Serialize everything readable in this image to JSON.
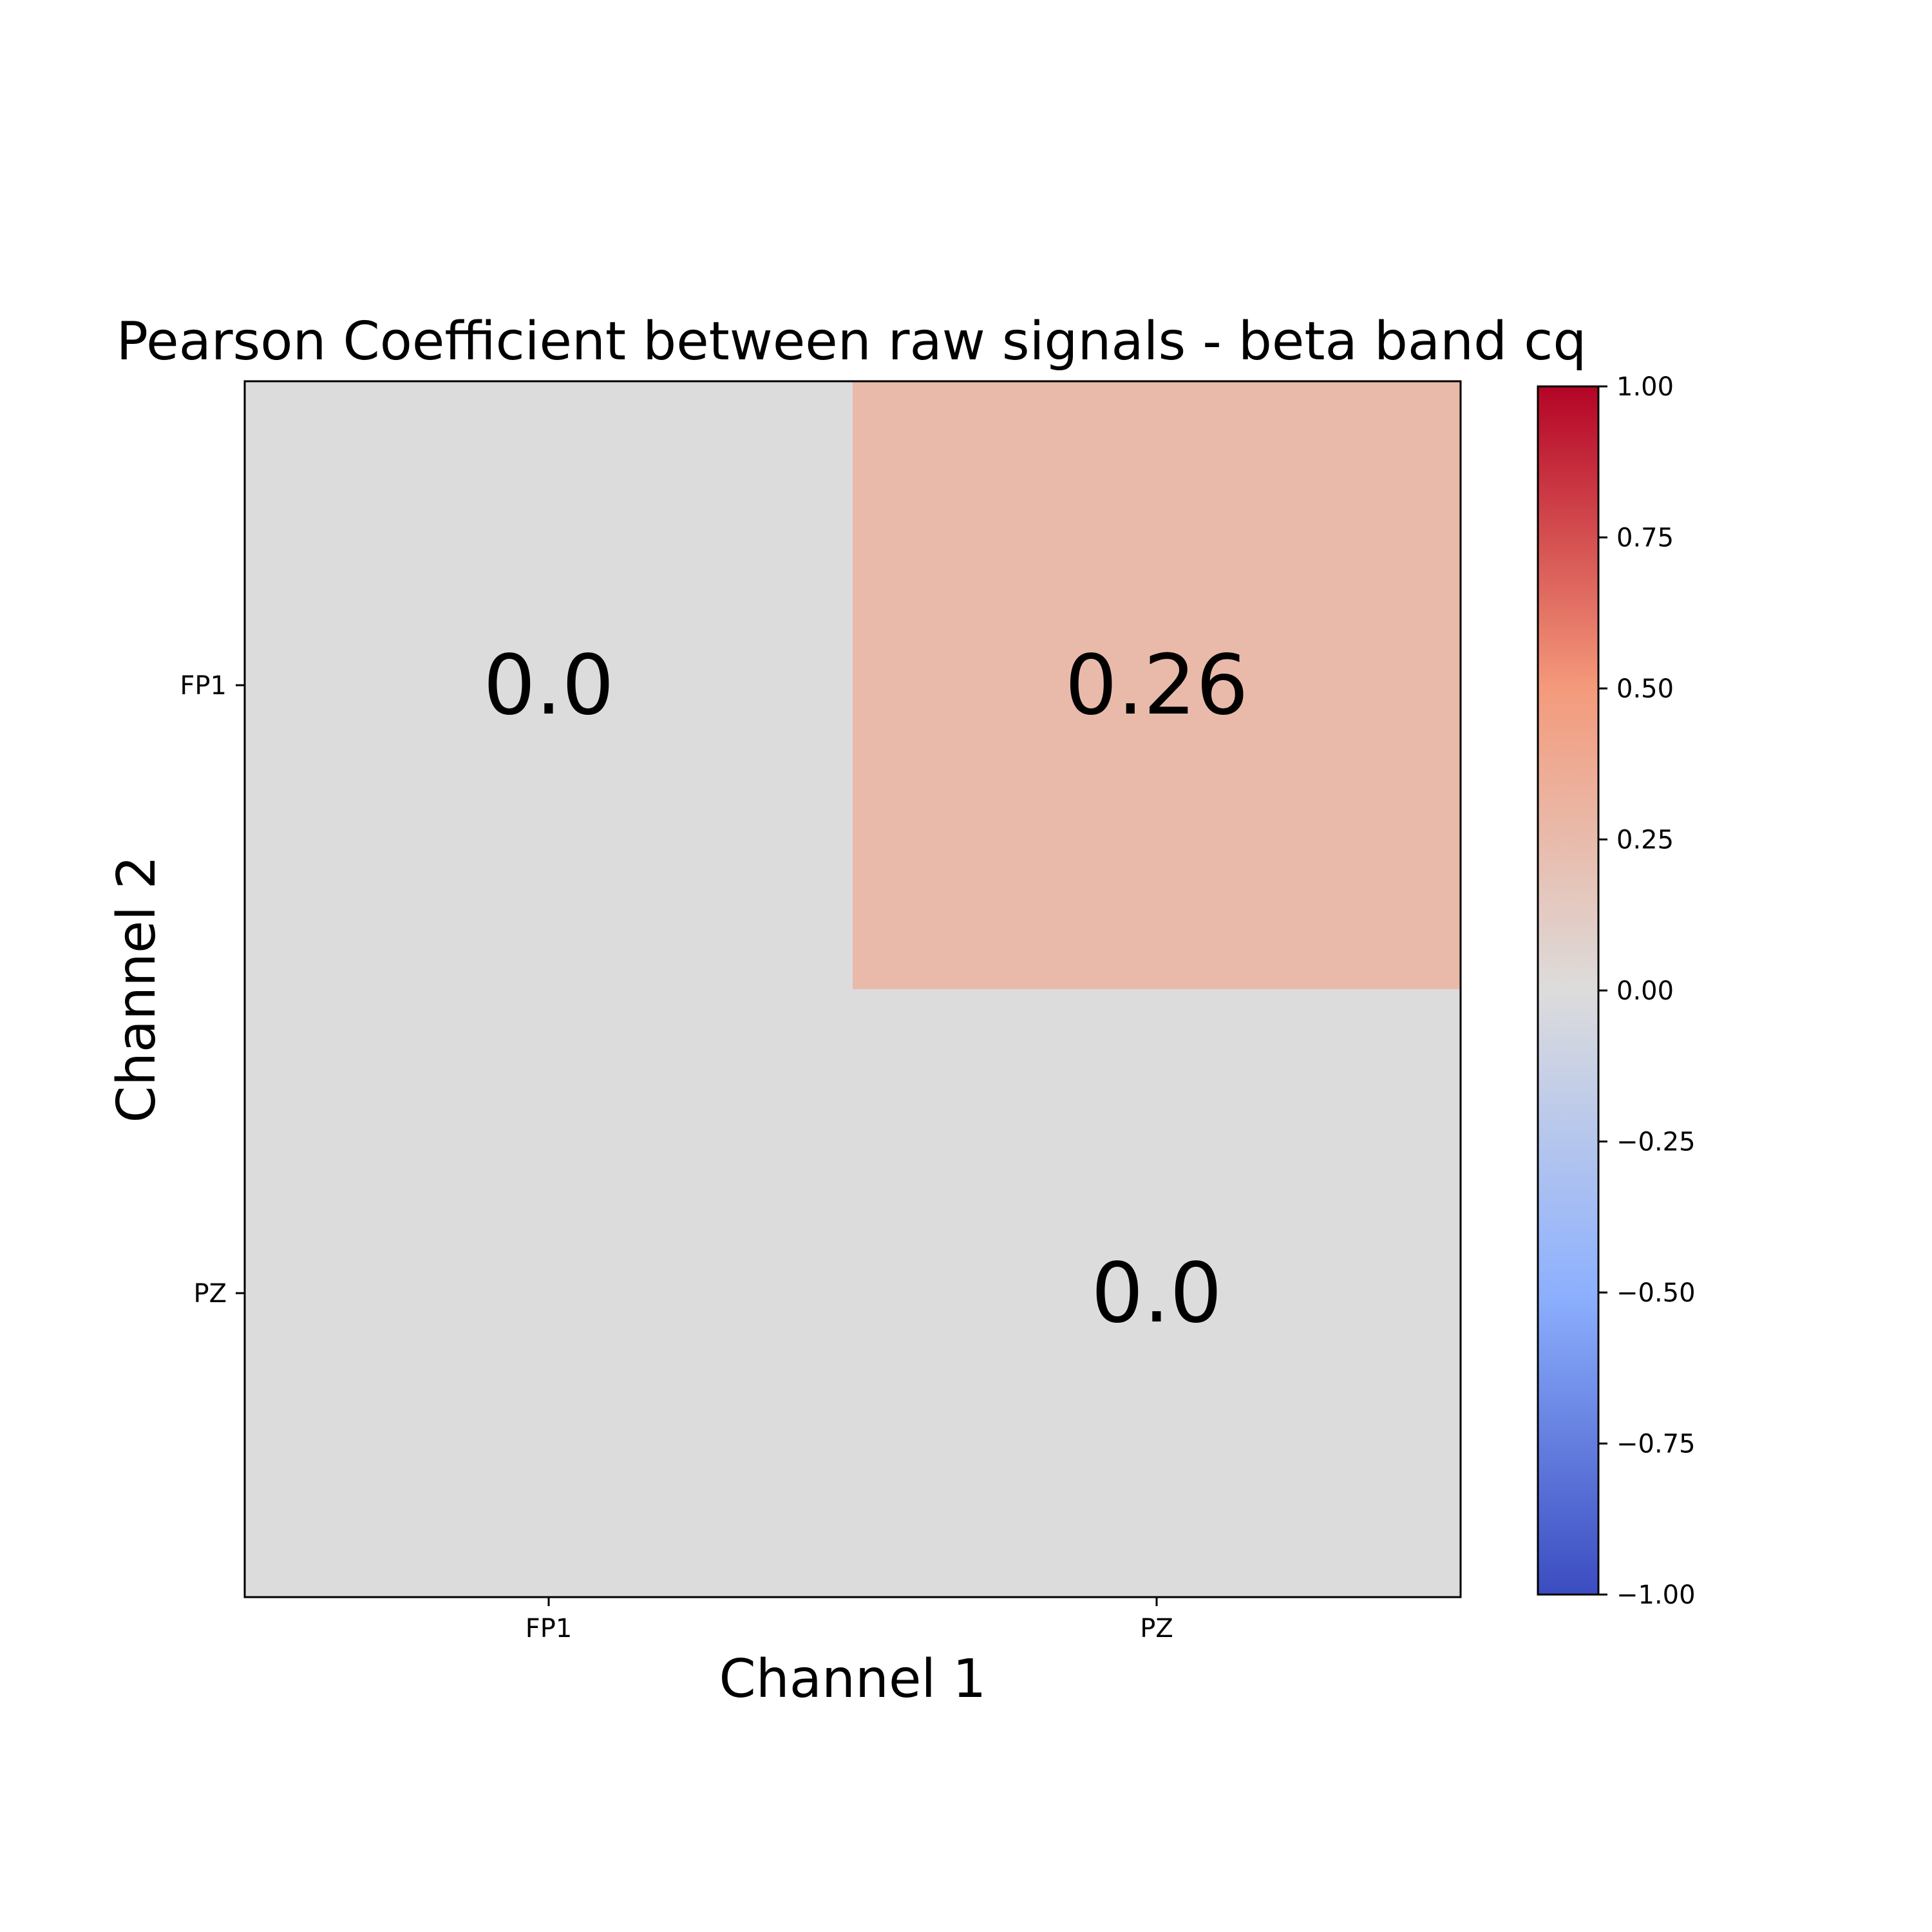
{
  "chart_data": {
    "type": "heatmap",
    "title": "Pearson Coefficient between raw signals - beta band cq",
    "xlabel": "Channel 1",
    "ylabel": "Channel 2",
    "x_categories": [
      "FP1",
      "PZ"
    ],
    "y_categories": [
      "FP1",
      "PZ"
    ],
    "cells": [
      {
        "x": "FP1",
        "y": "FP1",
        "value": 0.0,
        "label": "0.0"
      },
      {
        "x": "PZ",
        "y": "FP1",
        "value": 0.26,
        "label": "0.26"
      },
      {
        "x": "FP1",
        "y": "PZ",
        "value": 0.0,
        "label": ""
      },
      {
        "x": "PZ",
        "y": "PZ",
        "value": 0.0,
        "label": "0.0"
      }
    ],
    "colormap": "coolwarm",
    "colorbar": {
      "vmin": -1.0,
      "vmax": 1.0,
      "ticks": [
        "1.00",
        "0.75",
        "0.50",
        "0.25",
        "0.00",
        "−0.25",
        "−0.50",
        "−0.75",
        "−1.00"
      ],
      "tick_values": [
        1.0,
        0.75,
        0.5,
        0.25,
        0.0,
        -0.25,
        -0.5,
        -0.75,
        -1.0
      ]
    },
    "grid": false
  }
}
